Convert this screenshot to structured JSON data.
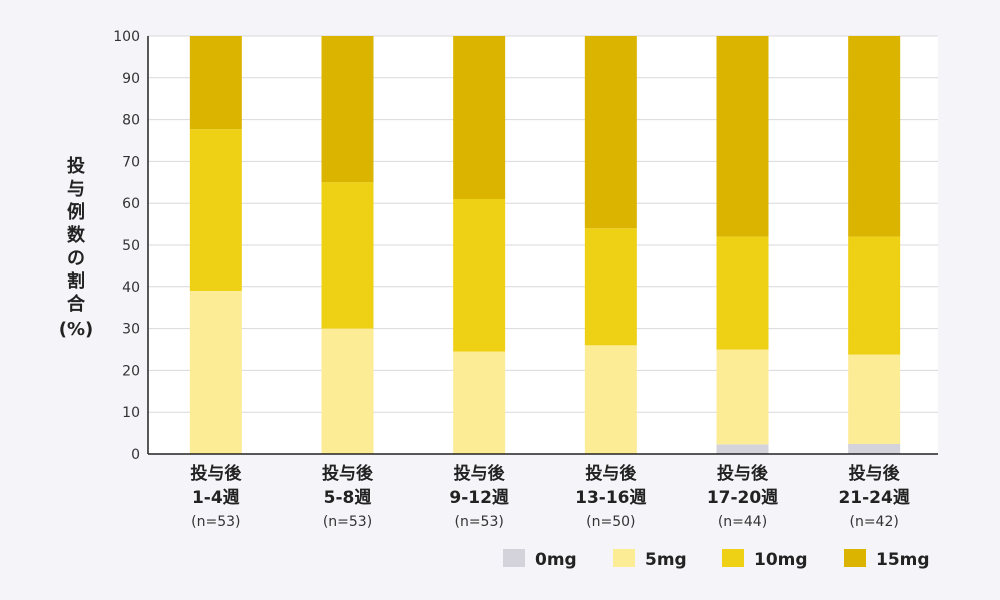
{
  "chart_data": {
    "type": "bar",
    "stacked": true,
    "ylabel": "投与例数の割合(%)",
    "ylim": [
      0,
      100
    ],
    "yticks": [
      0,
      10,
      20,
      30,
      40,
      50,
      60,
      70,
      80,
      90,
      100
    ],
    "grid": true,
    "legend_position": "bottom-right",
    "categories": [
      {
        "line1": "投与後",
        "line2": "1-4週",
        "n": "(n=53)"
      },
      {
        "line1": "投与後",
        "line2": "5-8週",
        "n": "(n=53)"
      },
      {
        "line1": "投与後",
        "line2": "9-12週",
        "n": "(n=53)"
      },
      {
        "line1": "投与後",
        "line2": "13-16週",
        "n": "(n=50)"
      },
      {
        "line1": "投与後",
        "line2": "17-20週",
        "n": "(n=44)"
      },
      {
        "line1": "投与後",
        "line2": "21-24週",
        "n": "(n=42)"
      }
    ],
    "series": [
      {
        "name": "0mg",
        "color": "#d4d3dc",
        "values": [
          0,
          0,
          0,
          0,
          2.3,
          2.4
        ]
      },
      {
        "name": "5mg",
        "color": "#fdec96",
        "values": [
          39,
          30,
          24.5,
          26,
          22.7,
          21.4
        ]
      },
      {
        "name": "10mg",
        "color": "#eed115",
        "values": [
          38.7,
          35,
          36.5,
          28,
          27,
          28.2
        ]
      },
      {
        "name": "15mg",
        "color": "#dbb400",
        "values": [
          22.3,
          35,
          39,
          46,
          48,
          48
        ]
      }
    ]
  }
}
